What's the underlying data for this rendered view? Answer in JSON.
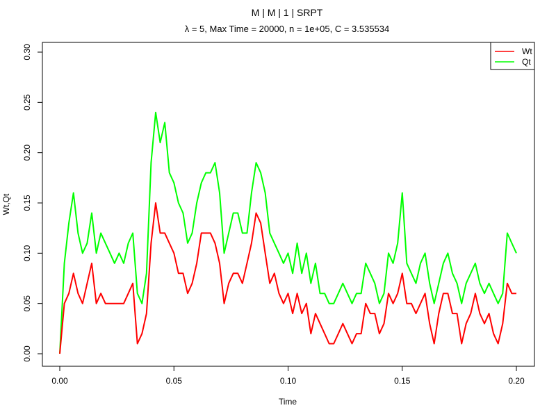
{
  "chart_data": {
    "type": "line",
    "title": "M | M | 1 | SRPT",
    "subtitle": "λ = 5, Max Time = 20000, n = 1e+05, C = 3.535534",
    "xlabel": "Time",
    "ylabel": "Wt,Qt",
    "xlim": [
      0.0,
      0.2
    ],
    "ylim": [
      0.0,
      0.3
    ],
    "x_ticks": [
      "0.00",
      "0.05",
      "0.10",
      "0.15",
      "0.20"
    ],
    "y_ticks": [
      "0.00",
      "0.05",
      "0.10",
      "0.15",
      "0.20",
      "0.25",
      "0.30"
    ],
    "legend_position": "top-right",
    "grid": false,
    "x": [
      0.0,
      0.002,
      0.004,
      0.006,
      0.008,
      0.01,
      0.012,
      0.014,
      0.016,
      0.018,
      0.02,
      0.022,
      0.024,
      0.026,
      0.028,
      0.03,
      0.032,
      0.034,
      0.036,
      0.038,
      0.04,
      0.042,
      0.044,
      0.046,
      0.048,
      0.05,
      0.052,
      0.054,
      0.056,
      0.058,
      0.06,
      0.062,
      0.064,
      0.066,
      0.068,
      0.07,
      0.072,
      0.074,
      0.076,
      0.078,
      0.08,
      0.082,
      0.084,
      0.086,
      0.088,
      0.09,
      0.092,
      0.094,
      0.096,
      0.098,
      0.1,
      0.102,
      0.104,
      0.106,
      0.108,
      0.11,
      0.112,
      0.114,
      0.116,
      0.118,
      0.12,
      0.122,
      0.124,
      0.126,
      0.128,
      0.13,
      0.132,
      0.134,
      0.136,
      0.138,
      0.14,
      0.142,
      0.144,
      0.146,
      0.148,
      0.15,
      0.152,
      0.154,
      0.156,
      0.158,
      0.16,
      0.162,
      0.164,
      0.166,
      0.168,
      0.17,
      0.172,
      0.174,
      0.176,
      0.178,
      0.18,
      0.182,
      0.184,
      0.186,
      0.188,
      0.19,
      0.192,
      0.194,
      0.196,
      0.198,
      0.2
    ],
    "series": [
      {
        "name": "Qt",
        "color": "#00ff00",
        "values": [
          0.0,
          0.09,
          0.13,
          0.16,
          0.12,
          0.1,
          0.11,
          0.14,
          0.1,
          0.12,
          0.11,
          0.1,
          0.09,
          0.1,
          0.09,
          0.11,
          0.12,
          0.06,
          0.05,
          0.08,
          0.19,
          0.24,
          0.21,
          0.23,
          0.18,
          0.17,
          0.15,
          0.14,
          0.11,
          0.12,
          0.15,
          0.17,
          0.18,
          0.18,
          0.19,
          0.16,
          0.1,
          0.12,
          0.14,
          0.14,
          0.12,
          0.12,
          0.16,
          0.19,
          0.18,
          0.16,
          0.12,
          0.11,
          0.1,
          0.09,
          0.1,
          0.08,
          0.11,
          0.08,
          0.1,
          0.07,
          0.09,
          0.06,
          0.06,
          0.05,
          0.05,
          0.06,
          0.07,
          0.06,
          0.05,
          0.06,
          0.06,
          0.09,
          0.08,
          0.07,
          0.05,
          0.06,
          0.1,
          0.09,
          0.11,
          0.16,
          0.09,
          0.08,
          0.07,
          0.09,
          0.1,
          0.07,
          0.05,
          0.07,
          0.09,
          0.1,
          0.08,
          0.07,
          0.05,
          0.07,
          0.08,
          0.09,
          0.07,
          0.06,
          0.07,
          0.06,
          0.05,
          0.06,
          0.12,
          0.11,
          0.1
        ]
      },
      {
        "name": "Wt",
        "color": "#ff0000",
        "values": [
          0.0,
          0.05,
          0.06,
          0.08,
          0.06,
          0.05,
          0.07,
          0.09,
          0.05,
          0.06,
          0.05,
          0.05,
          0.05,
          0.05,
          0.05,
          0.06,
          0.07,
          0.01,
          0.02,
          0.04,
          0.11,
          0.15,
          0.12,
          0.12,
          0.11,
          0.1,
          0.08,
          0.08,
          0.06,
          0.07,
          0.09,
          0.12,
          0.12,
          0.12,
          0.11,
          0.09,
          0.05,
          0.07,
          0.08,
          0.08,
          0.07,
          0.09,
          0.11,
          0.14,
          0.13,
          0.1,
          0.07,
          0.08,
          0.06,
          0.05,
          0.06,
          0.04,
          0.06,
          0.04,
          0.05,
          0.02,
          0.04,
          0.03,
          0.02,
          0.01,
          0.01,
          0.02,
          0.03,
          0.02,
          0.01,
          0.02,
          0.02,
          0.05,
          0.04,
          0.04,
          0.02,
          0.03,
          0.06,
          0.05,
          0.06,
          0.08,
          0.05,
          0.05,
          0.04,
          0.05,
          0.06,
          0.03,
          0.01,
          0.04,
          0.06,
          0.06,
          0.04,
          0.04,
          0.01,
          0.03,
          0.04,
          0.06,
          0.04,
          0.03,
          0.04,
          0.02,
          0.01,
          0.03,
          0.07,
          0.06,
          0.06
        ]
      }
    ],
    "legend": [
      {
        "label": "Wt",
        "color": "#ff0000"
      },
      {
        "label": "Qt",
        "color": "#00ff00"
      }
    ]
  }
}
